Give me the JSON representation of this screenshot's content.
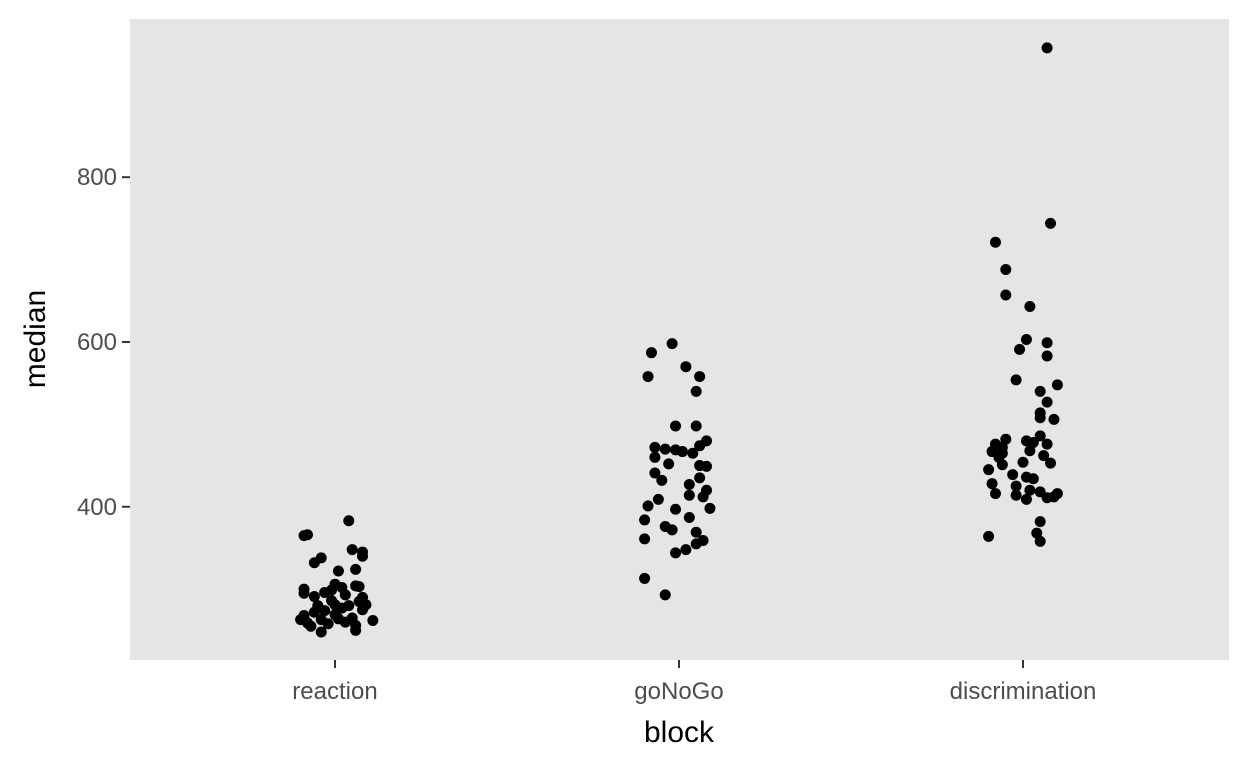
{
  "chart_data": {
    "type": "scatter",
    "title": "",
    "xlabel": "block",
    "ylabel": "median",
    "categories": [
      "reaction",
      "goNoGo",
      "discrimination"
    ],
    "yticks": [
      400,
      600,
      800
    ],
    "ylim": [
      214,
      992
    ],
    "grid": false,
    "panel_background": "#e5e5e5",
    "point_color": "#000000",
    "series": [
      {
        "category": "reaction",
        "points": [
          {
            "x": -0.09,
            "y": 365
          },
          {
            "x": -0.08,
            "y": 366
          },
          {
            "x": 0.04,
            "y": 383
          },
          {
            "x": -0.04,
            "y": 338
          },
          {
            "x": -0.06,
            "y": 332
          },
          {
            "x": 0.05,
            "y": 348
          },
          {
            "x": 0.08,
            "y": 345
          },
          {
            "x": 0.08,
            "y": 340
          },
          {
            "x": 0.01,
            "y": 322
          },
          {
            "x": 0.06,
            "y": 324
          },
          {
            "x": -0.09,
            "y": 300
          },
          {
            "x": -0.09,
            "y": 295
          },
          {
            "x": -0.06,
            "y": 291
          },
          {
            "x": -0.03,
            "y": 296
          },
          {
            "x": -0.01,
            "y": 299
          },
          {
            "x": 0.0,
            "y": 306
          },
          {
            "x": 0.02,
            "y": 302
          },
          {
            "x": 0.06,
            "y": 304
          },
          {
            "x": 0.07,
            "y": 303
          },
          {
            "x": 0.08,
            "y": 290
          },
          {
            "x": 0.07,
            "y": 285
          },
          {
            "x": 0.09,
            "y": 281
          },
          {
            "x": 0.0,
            "y": 281
          },
          {
            "x": 0.02,
            "y": 277
          },
          {
            "x": 0.04,
            "y": 280
          },
          {
            "x": -0.03,
            "y": 274
          },
          {
            "x": -0.06,
            "y": 272
          },
          {
            "x": -0.09,
            "y": 268
          },
          {
            "x": -0.1,
            "y": 263
          },
          {
            "x": -0.08,
            "y": 259
          },
          {
            "x": -0.07,
            "y": 255
          },
          {
            "x": -0.04,
            "y": 263
          },
          {
            "x": -0.02,
            "y": 258
          },
          {
            "x": 0.01,
            "y": 264
          },
          {
            "x": 0.03,
            "y": 260
          },
          {
            "x": 0.05,
            "y": 265
          },
          {
            "x": 0.06,
            "y": 256
          },
          {
            "x": 0.11,
            "y": 262
          },
          {
            "x": -0.04,
            "y": 248
          },
          {
            "x": 0.06,
            "y": 250
          },
          {
            "x": 0.08,
            "y": 275
          },
          {
            "x": -0.01,
            "y": 286
          },
          {
            "x": 0.03,
            "y": 293
          },
          {
            "x": -0.05,
            "y": 280
          },
          {
            "x": 0.0,
            "y": 269
          }
        ]
      },
      {
        "category": "goNoGo",
        "points": [
          {
            "x": -0.02,
            "y": 598
          },
          {
            "x": -0.08,
            "y": 587
          },
          {
            "x": 0.02,
            "y": 570
          },
          {
            "x": -0.09,
            "y": 558
          },
          {
            "x": 0.06,
            "y": 558
          },
          {
            "x": 0.05,
            "y": 540
          },
          {
            "x": -0.01,
            "y": 498
          },
          {
            "x": 0.05,
            "y": 498
          },
          {
            "x": 0.08,
            "y": 480
          },
          {
            "x": -0.07,
            "y": 472
          },
          {
            "x": -0.04,
            "y": 470
          },
          {
            "x": -0.01,
            "y": 469
          },
          {
            "x": 0.01,
            "y": 467
          },
          {
            "x": 0.04,
            "y": 465
          },
          {
            "x": 0.06,
            "y": 474
          },
          {
            "x": -0.07,
            "y": 460
          },
          {
            "x": -0.03,
            "y": 452
          },
          {
            "x": 0.06,
            "y": 450
          },
          {
            "x": 0.08,
            "y": 449
          },
          {
            "x": -0.07,
            "y": 441
          },
          {
            "x": -0.05,
            "y": 432
          },
          {
            "x": 0.03,
            "y": 427
          },
          {
            "x": 0.06,
            "y": 435
          },
          {
            "x": 0.08,
            "y": 420
          },
          {
            "x": 0.07,
            "y": 412
          },
          {
            "x": 0.03,
            "y": 414
          },
          {
            "x": -0.06,
            "y": 409
          },
          {
            "x": -0.09,
            "y": 401
          },
          {
            "x": -0.01,
            "y": 397
          },
          {
            "x": 0.09,
            "y": 398
          },
          {
            "x": -0.1,
            "y": 384
          },
          {
            "x": 0.03,
            "y": 387
          },
          {
            "x": -0.04,
            "y": 376
          },
          {
            "x": -0.02,
            "y": 372
          },
          {
            "x": 0.05,
            "y": 369
          },
          {
            "x": -0.1,
            "y": 361
          },
          {
            "x": 0.07,
            "y": 359
          },
          {
            "x": 0.05,
            "y": 355
          },
          {
            "x": 0.02,
            "y": 348
          },
          {
            "x": -0.01,
            "y": 344
          },
          {
            "x": -0.1,
            "y": 313
          },
          {
            "x": -0.04,
            "y": 293
          }
        ]
      },
      {
        "category": "discrimination",
        "points": [
          {
            "x": 0.07,
            "y": 957
          },
          {
            "x": 0.08,
            "y": 744
          },
          {
            "x": -0.08,
            "y": 721
          },
          {
            "x": -0.05,
            "y": 688
          },
          {
            "x": -0.05,
            "y": 657
          },
          {
            "x": 0.02,
            "y": 643
          },
          {
            "x": 0.01,
            "y": 603
          },
          {
            "x": -0.01,
            "y": 591
          },
          {
            "x": 0.07,
            "y": 599
          },
          {
            "x": 0.07,
            "y": 583
          },
          {
            "x": -0.02,
            "y": 554
          },
          {
            "x": 0.1,
            "y": 548
          },
          {
            "x": 0.05,
            "y": 540
          },
          {
            "x": 0.07,
            "y": 527
          },
          {
            "x": 0.05,
            "y": 514
          },
          {
            "x": 0.05,
            "y": 508
          },
          {
            "x": 0.09,
            "y": 506
          },
          {
            "x": 0.05,
            "y": 486
          },
          {
            "x": -0.05,
            "y": 482
          },
          {
            "x": 0.01,
            "y": 480
          },
          {
            "x": 0.03,
            "y": 478
          },
          {
            "x": -0.08,
            "y": 476
          },
          {
            "x": -0.06,
            "y": 472
          },
          {
            "x": 0.07,
            "y": 476
          },
          {
            "x": -0.09,
            "y": 467
          },
          {
            "x": -0.06,
            "y": 465
          },
          {
            "x": -0.07,
            "y": 460
          },
          {
            "x": 0.02,
            "y": 468
          },
          {
            "x": 0.06,
            "y": 462
          },
          {
            "x": -0.06,
            "y": 451
          },
          {
            "x": 0.0,
            "y": 454
          },
          {
            "x": 0.08,
            "y": 453
          },
          {
            "x": -0.1,
            "y": 445
          },
          {
            "x": -0.03,
            "y": 439
          },
          {
            "x": 0.01,
            "y": 436
          },
          {
            "x": 0.03,
            "y": 434
          },
          {
            "x": -0.09,
            "y": 428
          },
          {
            "x": -0.02,
            "y": 425
          },
          {
            "x": 0.02,
            "y": 420
          },
          {
            "x": 0.05,
            "y": 418
          },
          {
            "x": -0.08,
            "y": 416
          },
          {
            "x": -0.02,
            "y": 414
          },
          {
            "x": 0.01,
            "y": 409
          },
          {
            "x": 0.07,
            "y": 411
          },
          {
            "x": 0.09,
            "y": 412
          },
          {
            "x": 0.1,
            "y": 416
          },
          {
            "x": 0.05,
            "y": 382
          },
          {
            "x": 0.04,
            "y": 368
          },
          {
            "x": -0.1,
            "y": 364
          },
          {
            "x": 0.05,
            "y": 358
          }
        ]
      }
    ]
  }
}
